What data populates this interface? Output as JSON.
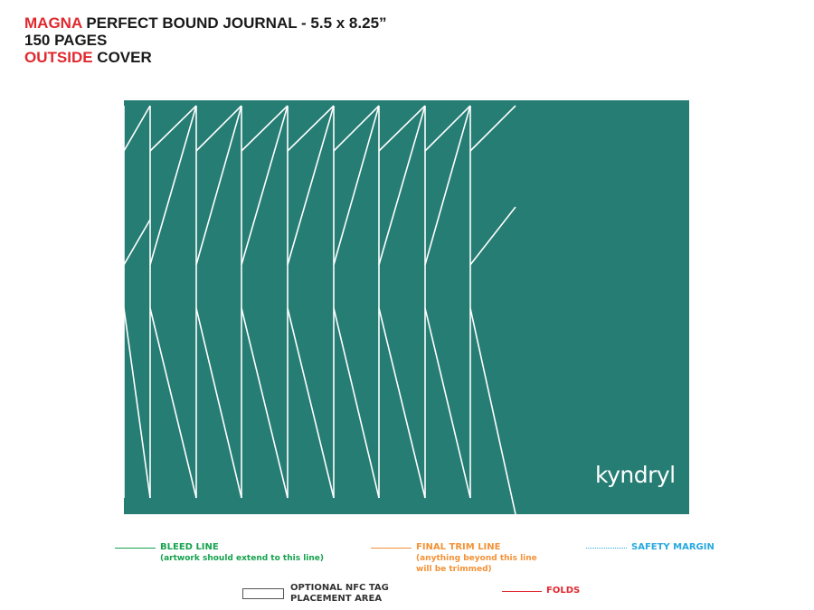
{
  "title": {
    "line1_brand": "MAGNA",
    "line1_rest": " PERFECT BOUND JOURNAL - 5.5 x 8.25”",
    "line2": "150 PAGES",
    "line3_highlight": "OUTSIDE",
    "line3_rest": " COVER"
  },
  "cover": {
    "background_color": "#267d74",
    "line_color": "#ffffff",
    "logo_text": "kyndryl"
  },
  "legend": {
    "bleed_label": "BLEED LINE",
    "bleed_note": "(artwork should extend to this line)",
    "bleed_color": "#15a24e",
    "trim_label": "FINAL TRIM LINE",
    "trim_note_1": "(anything beyond this line",
    "trim_note_2": "will be trimmed)",
    "trim_color": "#f39237",
    "safety_label": "SAFETY MARGIN",
    "safety_color": "#27a9e0",
    "nfc_label_1": "OPTIONAL NFC TAG",
    "nfc_label_2": "PLACEMENT AREA",
    "folds_label": "FOLDS",
    "folds_color": "#e0282e"
  }
}
